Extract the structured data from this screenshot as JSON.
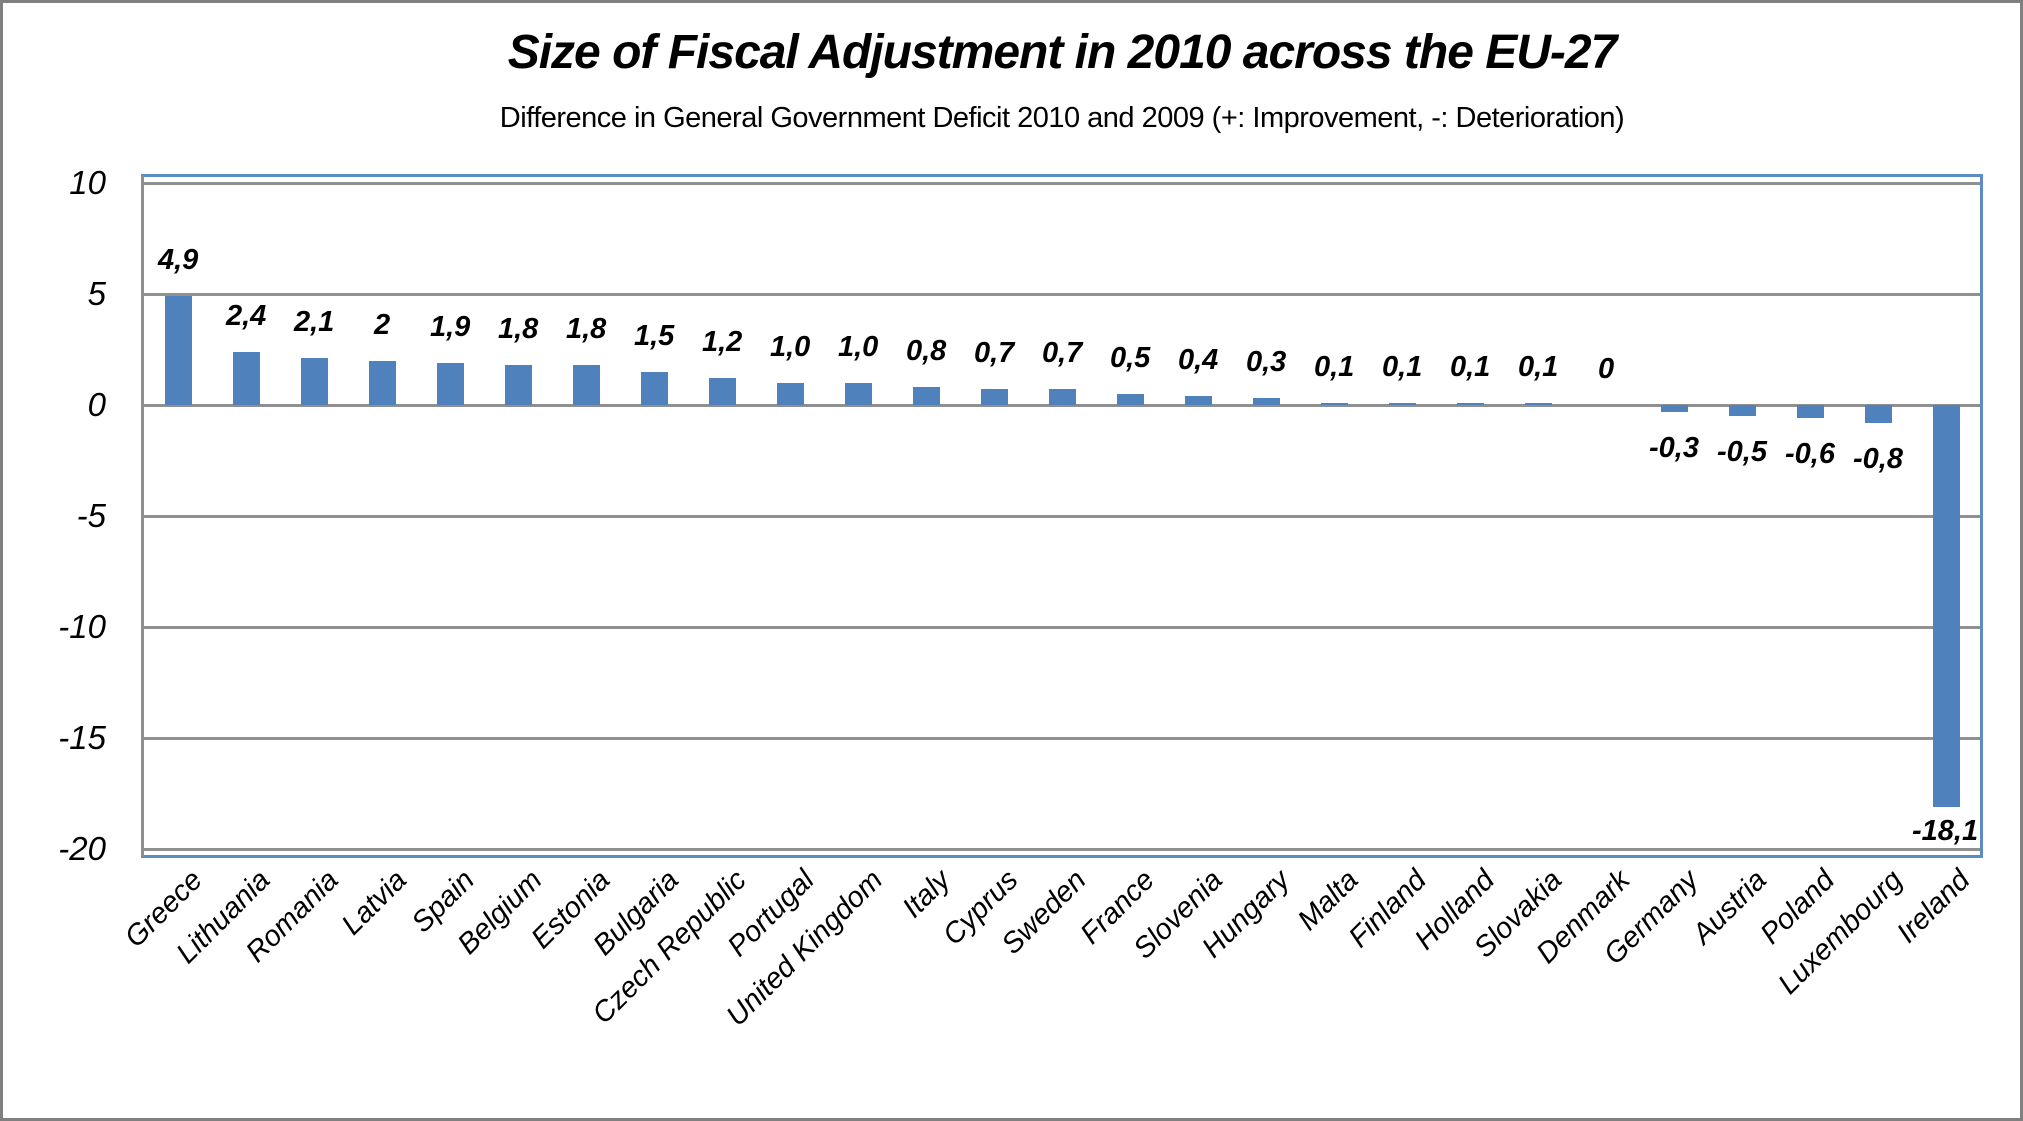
{
  "window": {
    "background": "#FFFFFF",
    "border_color": "#808080"
  },
  "chart_data": {
    "type": "bar",
    "title": "Size of Fiscal Adjustment in 2010 across the EU-27",
    "subtitle": "Difference in General Government Deficit 2010 and 2009 (+: Improvement, -: Deterioration)",
    "categories": [
      "Greece",
      "Lithuania",
      "Romania",
      "Latvia",
      "Spain",
      "Belgium",
      "Estonia",
      "Bulgaria",
      "Czech Republic",
      "Portugal",
      "United Kingdom",
      "Italy",
      "Cyprus",
      "Sweden",
      "France",
      "Slovenia",
      "Hungary",
      "Malta",
      "Finland",
      "Holland",
      "Slovakia",
      "Denmark",
      "Germany",
      "Austria",
      "Poland",
      "Luxembourg",
      "Ireland"
    ],
    "values": [
      4.9,
      2.4,
      2.1,
      2,
      1.9,
      1.8,
      1.8,
      1.5,
      1.2,
      1.0,
      1.0,
      0.8,
      0.7,
      0.7,
      0.5,
      0.4,
      0.3,
      0.1,
      0.1,
      0.1,
      0.1,
      0,
      -0.3,
      -0.5,
      -0.6,
      -0.8,
      -18.1
    ],
    "value_labels": [
      "4,9",
      "2,4",
      "2,1",
      "2",
      "1,9",
      "1,8",
      "1,8",
      "1,5",
      "1,2",
      "1,0",
      "1,0",
      "0,8",
      "0,7",
      "0,7",
      "0,5",
      "0,4",
      "0,3",
      "0,1",
      "0,1",
      "0,1",
      "0,1",
      "0",
      "-0,3",
      "-0,5",
      "-0,6",
      "-0,8",
      "-18,1"
    ],
    "ylim": [
      -20,
      10
    ],
    "yticks": [
      10,
      5,
      0,
      -5,
      -10,
      -15,
      -20
    ],
    "ytick_labels": [
      "10",
      "5",
      "0",
      "-5",
      "-10",
      "-15",
      "-20"
    ],
    "grid": true,
    "legend": "none",
    "xlabel": "",
    "ylabel": "",
    "bar_color": "#4F81BD",
    "plot_border_color": "#5D8CC4",
    "gridline_color": "#909090",
    "axis_line_color": "#8F8F8F"
  }
}
